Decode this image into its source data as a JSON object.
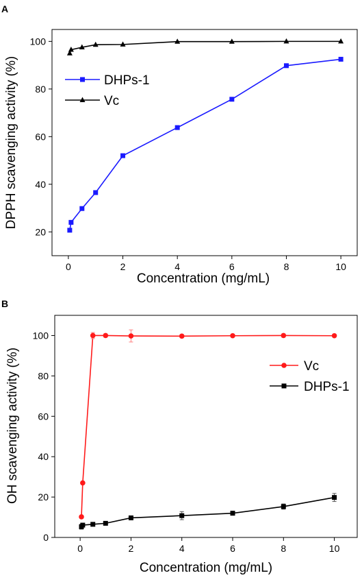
{
  "chart_data": [
    {
      "panel_label": "A",
      "type": "line",
      "xlabel": "Concentration (mg/mL)",
      "ylabel": "DPPH scavenging activity (%)",
      "xlim": [
        -0.6,
        10.6
      ],
      "ylim": [
        10,
        105
      ],
      "xticks": [
        0,
        2,
        4,
        6,
        8,
        10
      ],
      "yticks": [
        20,
        40,
        60,
        80,
        100
      ],
      "grid": false,
      "legend_position": "upper-left",
      "series": [
        {
          "name": "DHPs-1",
          "color": "#1a1aff",
          "marker": "square",
          "x": [
            0.05,
            0.1,
            0.5,
            1,
            2,
            4,
            6,
            8,
            10
          ],
          "y": [
            20.7,
            24.0,
            29.8,
            36.5,
            52.0,
            63.8,
            75.7,
            89.8,
            92.5
          ]
        },
        {
          "name": "Vc",
          "color": "#000000",
          "marker": "triangle",
          "x": [
            0.05,
            0.1,
            0.5,
            1,
            2,
            4,
            6,
            8,
            10
          ],
          "y": [
            95.0,
            96.5,
            97.5,
            98.6,
            98.7,
            99.9,
            99.9,
            100.0,
            100.0
          ]
        }
      ]
    },
    {
      "panel_label": "B",
      "type": "line",
      "xlabel": "Concentration (mg/mL)",
      "ylabel": "OH scavenging activity (%)",
      "xlim": [
        -1,
        10.9
      ],
      "ylim": [
        0,
        110
      ],
      "xticks": [
        0,
        2,
        4,
        6,
        8,
        10
      ],
      "yticks": [
        0,
        20,
        40,
        60,
        80,
        100
      ],
      "grid": false,
      "legend_position": "right",
      "series": [
        {
          "name": "Vc",
          "color": "#ff1a1a",
          "marker": "circle",
          "x": [
            0.05,
            0.1,
            0.5,
            1,
            2,
            4,
            6,
            8,
            10
          ],
          "y": [
            10.2,
            27.0,
            100.0,
            100.0,
            99.8,
            99.7,
            99.9,
            100.0,
            99.9
          ],
          "err": [
            0,
            0,
            1.5,
            0.8,
            3.0,
            0.8,
            0.7,
            0.8,
            0.6
          ]
        },
        {
          "name": "DHPs-1",
          "color": "#000000",
          "marker": "square",
          "x": [
            0.05,
            0.1,
            0.5,
            1,
            2,
            4,
            6,
            8,
            10
          ],
          "y": [
            5.3,
            6.1,
            6.5,
            7.0,
            9.7,
            10.8,
            12.0,
            15.3,
            19.8
          ],
          "err": [
            1.2,
            1.0,
            0.8,
            0.8,
            0.9,
            2.0,
            1.0,
            1.3,
            2.0
          ]
        }
      ]
    }
  ]
}
